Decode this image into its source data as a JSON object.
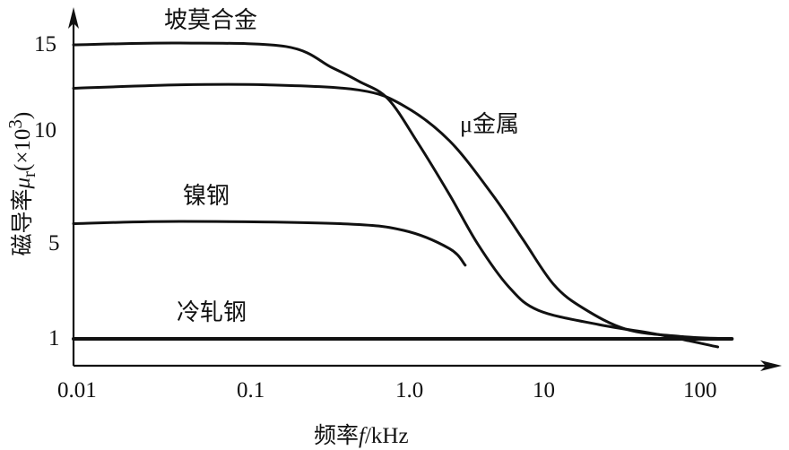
{
  "chart_data": {
    "type": "line",
    "xlabel": {
      "prefix": "频率",
      "symbol": "f",
      "unit": "/kHz"
    },
    "ylabel": {
      "prefix": "磁导率",
      "symbol": "μ",
      "sub": "r",
      "unit": "(×10",
      "sup": "3",
      "close": ")"
    },
    "x_scale": "log",
    "x_ticks": [
      "0.01",
      "0.1",
      "1.0",
      "10",
      "100"
    ],
    "y_ticks": [
      "1",
      "5",
      "10",
      "15"
    ],
    "grid": false,
    "series": [
      {
        "name": "坡莫合金",
        "x": [
          0.01,
          0.039,
          0.16,
          0.31,
          0.46,
          0.7,
          1.1,
          1.9,
          3.1,
          5.3,
          8.9,
          22,
          51,
          126
        ],
        "y": [
          15,
          15.1,
          14.9,
          13.7,
          12.9,
          11.9,
          9.5,
          7.2,
          5.0,
          3.2,
          2.2,
          1.6,
          1.2,
          0.66
        ]
      },
      {
        "name": "μ金属",
        "x": [
          0.01,
          0.039,
          0.12,
          0.46,
          0.88,
          1.9,
          4.0,
          6.8,
          11.3,
          17.4,
          33,
          73,
          155
        ],
        "y": [
          12.5,
          12.7,
          12.7,
          12.4,
          11.5,
          9.6,
          7.2,
          5.2,
          3.3,
          2.3,
          1.4,
          1.1,
          1.0
        ]
      },
      {
        "name": "镍钢",
        "x": [
          0.01,
          0.039,
          0.35,
          0.88,
          1.9,
          2.5
        ],
        "y": [
          5.9,
          6.0,
          5.9,
          5.6,
          4.8,
          4.1
        ]
      },
      {
        "name": "冷轧钢",
        "x": [
          0.01,
          155
        ],
        "y": [
          1,
          1
        ]
      }
    ]
  }
}
